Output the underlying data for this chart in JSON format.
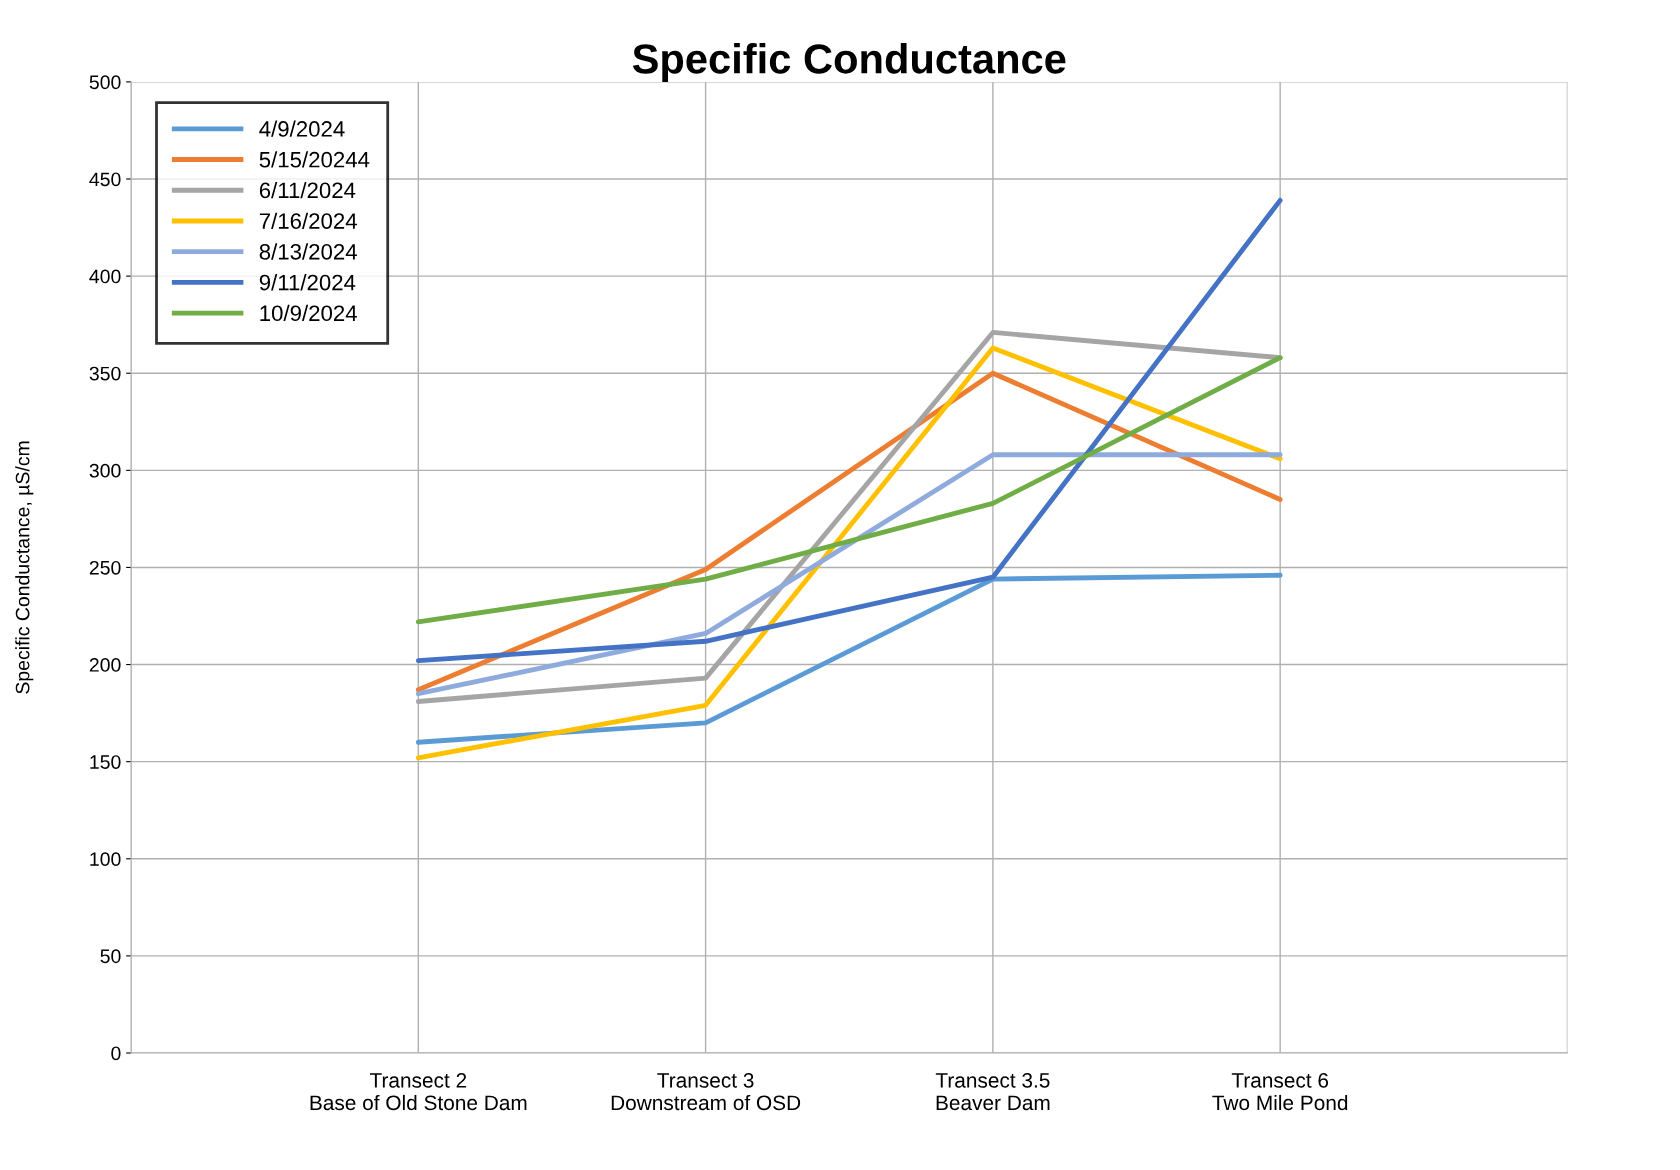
{
  "chart_data": {
    "type": "line",
    "title": "Specific Conductance",
    "ylabel": "Specific Conductance, µS/cm",
    "categories": [
      null,
      "Transect 2\nBase of Old Stone Dam",
      "Transect 3\nDownstream of OSD",
      "Transect 3.5\nBeaver Dam",
      "Transect 6\nTwo Mile Pond",
      null
    ],
    "series": [
      {
        "name": "4/9/2024",
        "color": "#5b9bd5",
        "values": [
          null,
          160,
          170,
          244,
          246,
          null
        ]
      },
      {
        "name": "5/15/20244",
        "color": "#ed7d31",
        "values": [
          null,
          187,
          249,
          350,
          285,
          null
        ]
      },
      {
        "name": "6/11/2024",
        "color": "#a5a5a5",
        "values": [
          null,
          181,
          193,
          371,
          358,
          null
        ]
      },
      {
        "name": "7/16/2024",
        "color": "#ffc000",
        "values": [
          null,
          152,
          179,
          363,
          306,
          null
        ]
      },
      {
        "name": "8/13/2024",
        "color": "#8faadc",
        "values": [
          null,
          185,
          216,
          308,
          308,
          null
        ]
      },
      {
        "name": "9/11/2024",
        "color": "#4472c4",
        "values": [
          null,
          202,
          212,
          245,
          439,
          null
        ]
      },
      {
        "name": "10/9/2024",
        "color": "#70ad47",
        "values": [
          null,
          222,
          244,
          283,
          358,
          null
        ]
      }
    ],
    "ylim": [
      0,
      500
    ],
    "yticks": [
      0,
      50,
      100,
      150,
      200,
      250,
      300,
      350,
      400,
      450,
      500
    ],
    "grid": true,
    "legend": "top left",
    "marker": "none",
    "line_style": "solid"
  }
}
